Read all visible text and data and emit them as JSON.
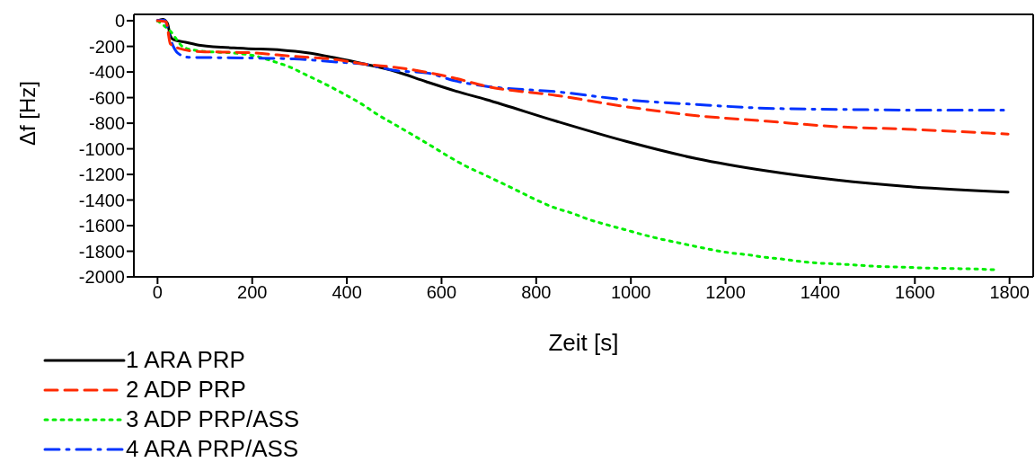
{
  "chart_data": {
    "type": "line",
    "xlabel": "Zeit [s]",
    "ylabel": "Δf [Hz]",
    "xlim": [
      -50,
      1850
    ],
    "ylim": [
      -2000,
      50
    ],
    "xticks": [
      0,
      200,
      400,
      600,
      800,
      1000,
      1200,
      1400,
      1600,
      1800
    ],
    "yticks": [
      -2000,
      -1800,
      -1600,
      -1400,
      -1200,
      -1000,
      -800,
      -600,
      -400,
      -200,
      0
    ],
    "legend": "bottom left",
    "marker": "none",
    "series": [
      {
        "name": "1 ARA PRP",
        "color": "#000000",
        "line_style": "solid",
        "x": [
          0,
          11,
          21,
          27,
          34,
          59,
          91,
          186,
          262,
          313,
          377,
          440,
          503,
          567,
          630,
          694,
          842,
          990,
          1139,
          1286,
          1435,
          1584,
          1797
        ],
        "values": [
          0,
          12,
          -20,
          -118,
          -148,
          -167,
          -192,
          -216,
          -229,
          -248,
          -290,
          -340,
          -396,
          -475,
          -549,
          -615,
          -784,
          -942,
          -1077,
          -1172,
          -1244,
          -1295,
          -1338
        ]
      },
      {
        "name": "2 ADP PRP",
        "color": "#ff2a00",
        "line_style": "dashed",
        "x": [
          0,
          18,
          27,
          46,
          91,
          186,
          288,
          377,
          440,
          503,
          567,
          630,
          694,
          842,
          990,
          1139,
          1286,
          1435,
          1584,
          1797
        ],
        "values": [
          0,
          -7,
          -180,
          -216,
          -241,
          -248,
          -278,
          -303,
          -340,
          -364,
          -401,
          -450,
          -511,
          -583,
          -671,
          -741,
          -784,
          -827,
          -847,
          -885
        ]
      },
      {
        "name": "3 ADP PRP/ASS",
        "color": "#00ee00",
        "line_style": "dotted",
        "x": [
          0,
          27,
          56,
          91,
          167,
          205,
          243,
          278,
          316,
          354,
          392,
          430,
          465,
          503,
          542,
          580,
          615,
          653,
          694,
          765,
          801,
          838,
          875,
          913,
          950,
          987,
          1024,
          1061,
          1098,
          1135,
          1172,
          1209,
          1246,
          1283,
          1320,
          1361,
          1398,
          1435,
          1472,
          1509,
          1546,
          1584,
          1620,
          1657,
          1694,
          1731,
          1772
        ],
        "values": [
          0,
          -81,
          -209,
          -236,
          -254,
          -273,
          -315,
          -359,
          -426,
          -494,
          -568,
          -647,
          -733,
          -814,
          -898,
          -981,
          -1060,
          -1138,
          -1209,
          -1335,
          -1401,
          -1459,
          -1502,
          -1554,
          -1594,
          -1631,
          -1669,
          -1703,
          -1732,
          -1761,
          -1789,
          -1812,
          -1827,
          -1847,
          -1861,
          -1881,
          -1893,
          -1899,
          -1907,
          -1916,
          -1922,
          -1925,
          -1931,
          -1933,
          -1936,
          -1939,
          -1945
        ]
      },
      {
        "name": "4 ARA PRP/ASS",
        "color": "#0033ff",
        "line_style": "dashdot",
        "x": [
          0,
          15,
          27,
          43,
          65,
          186,
          288,
          377,
          440,
          503,
          567,
          630,
          694,
          842,
          990,
          1139,
          1286,
          1435,
          1584,
          1797
        ],
        "values": [
          5,
          5,
          -143,
          -253,
          -285,
          -290,
          -298,
          -322,
          -340,
          -389,
          -406,
          -470,
          -511,
          -554,
          -617,
          -654,
          -683,
          -692,
          -697,
          -697
        ]
      }
    ]
  }
}
